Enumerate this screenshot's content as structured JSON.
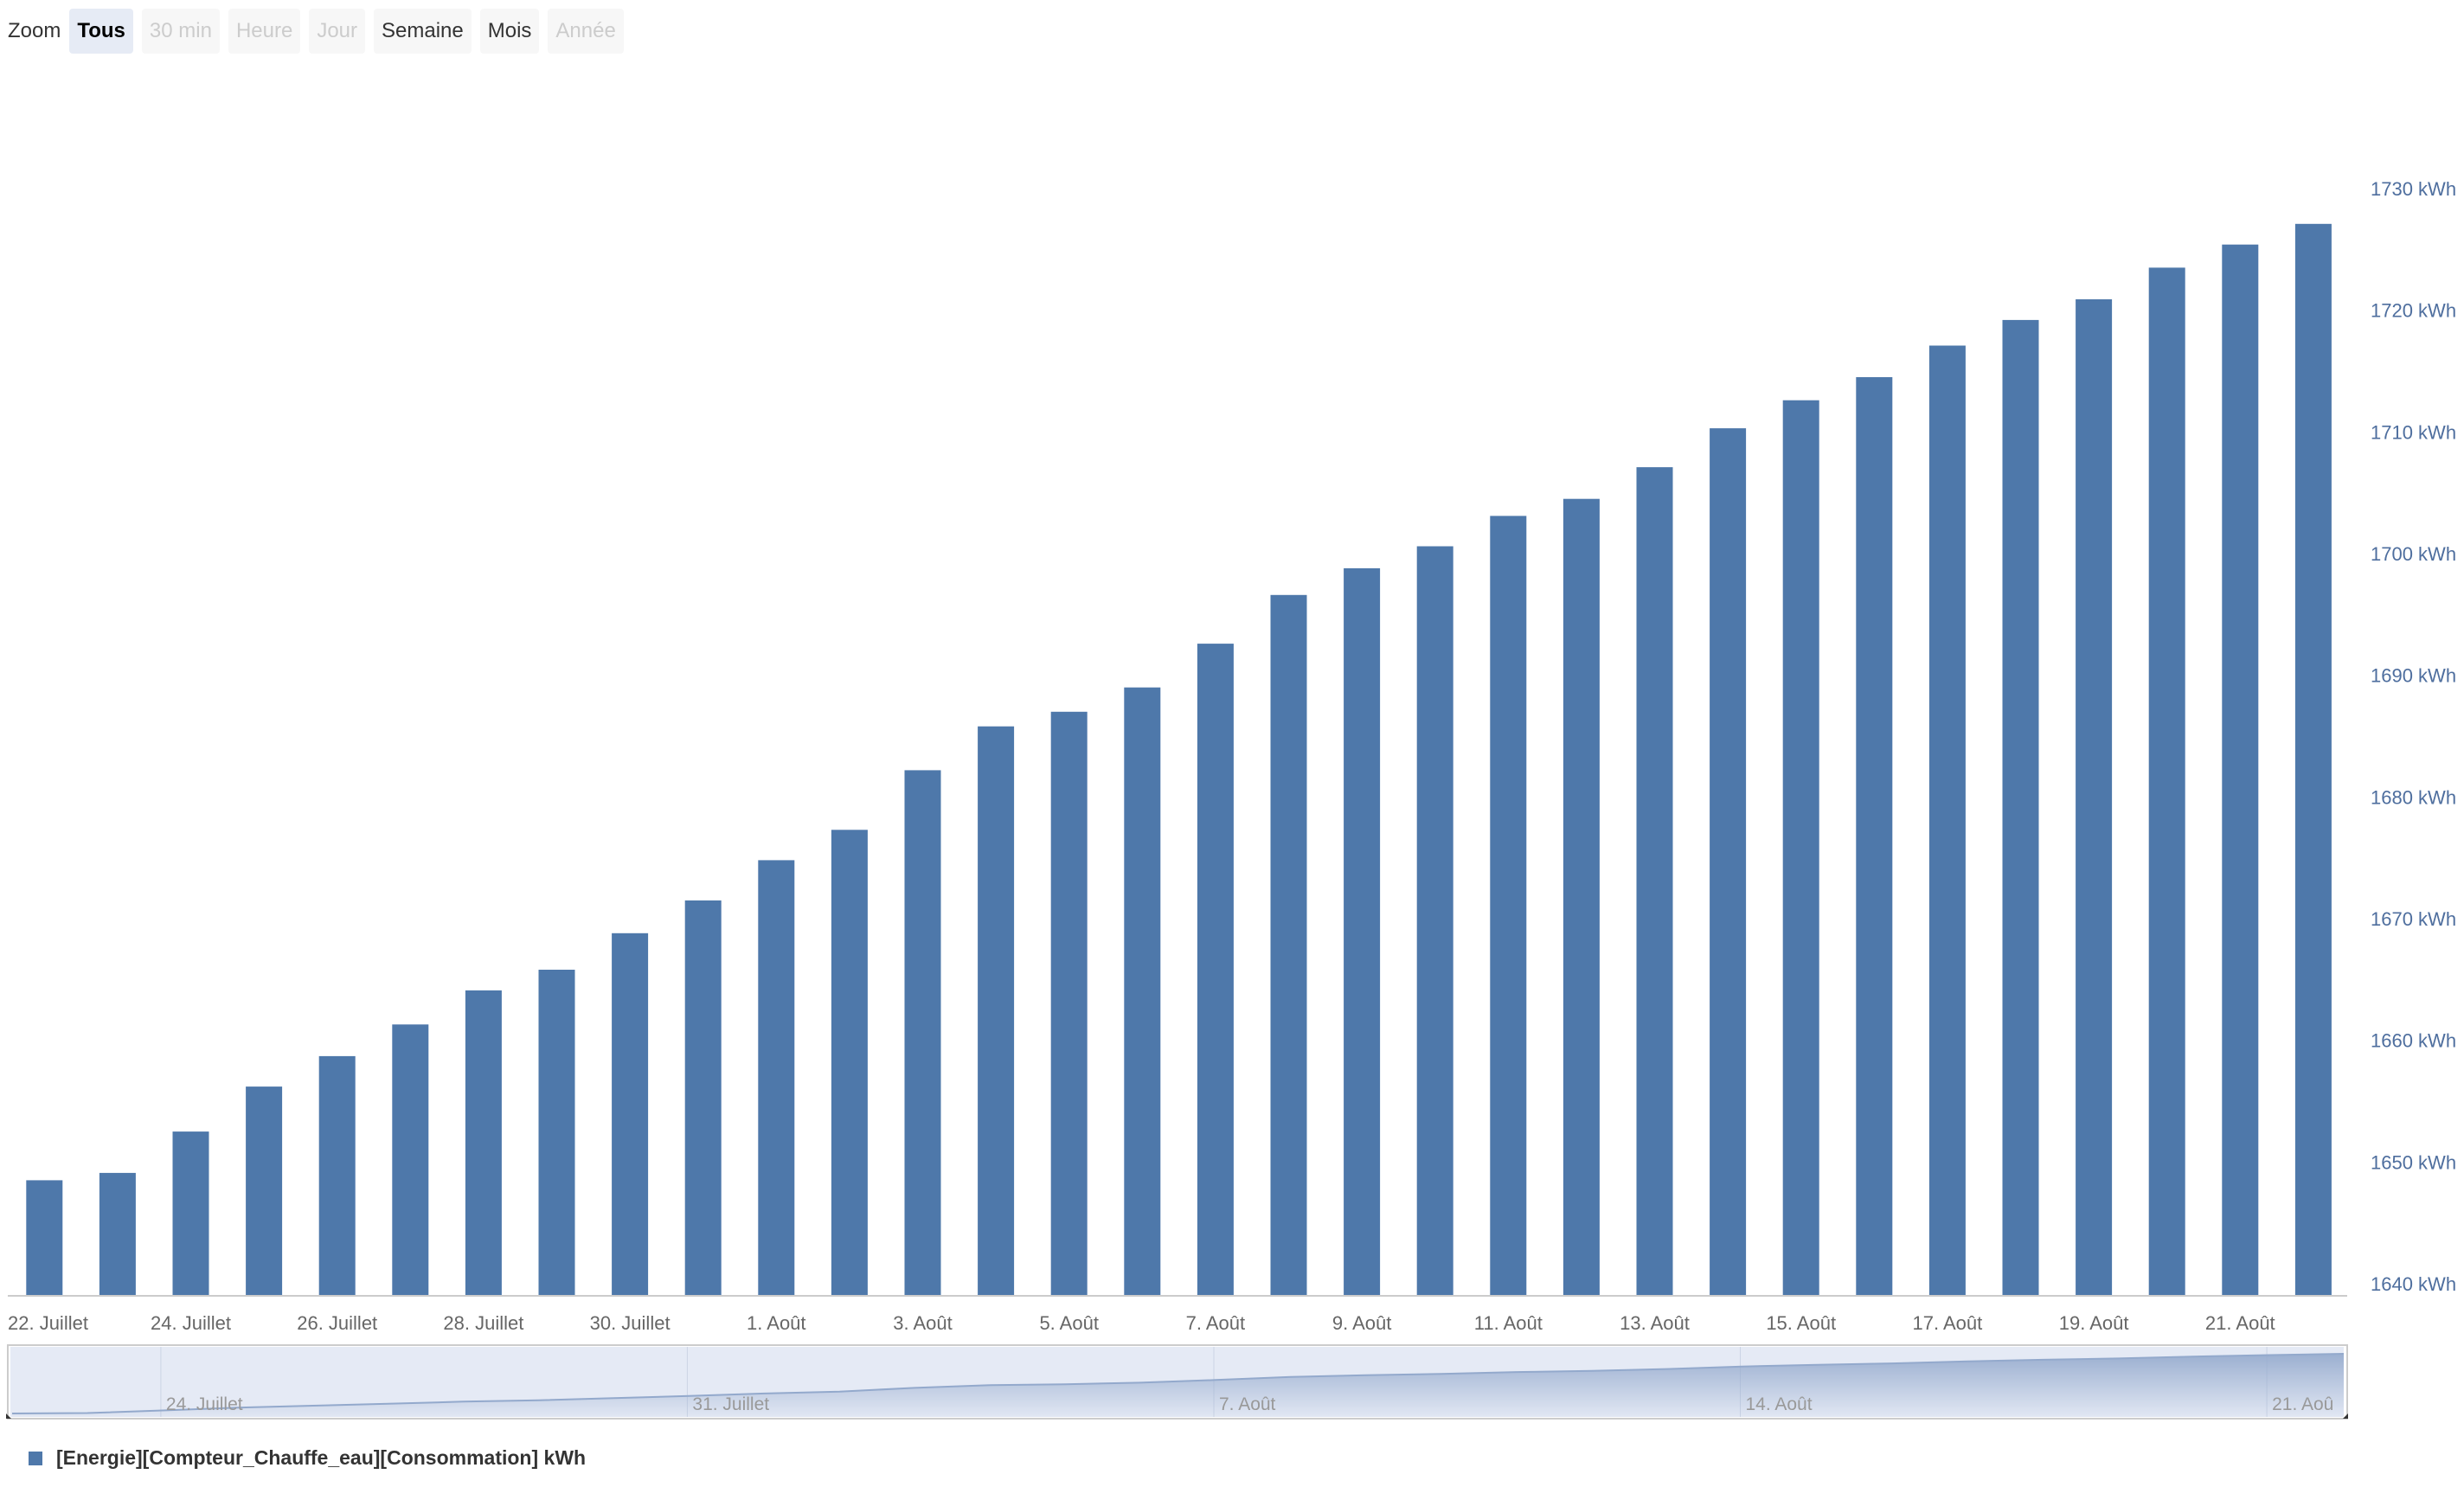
{
  "zoom": {
    "label": "Zoom",
    "buttons": [
      {
        "label": "Tous",
        "state": "active"
      },
      {
        "label": "30 min",
        "state": "disabled"
      },
      {
        "label": "Heure",
        "state": "disabled"
      },
      {
        "label": "Jour",
        "state": "disabled"
      },
      {
        "label": "Semaine",
        "state": "normal"
      },
      {
        "label": "Mois",
        "state": "normal"
      },
      {
        "label": "Année",
        "state": "disabled"
      }
    ]
  },
  "colors": {
    "bar": "#4e78aa",
    "axis_label": "#666666",
    "yaxis_label": "#4e6e9e",
    "navigator_mask": "#d0d9ec",
    "navigator_line": "#4a6fa5"
  },
  "legend": {
    "label": "[Energie][Compteur_Chauffe_eau][Consommation] kWh"
  },
  "chart_data": {
    "type": "bar",
    "categories": [
      "22. Juillet",
      "23. Juillet",
      "24. Juillet",
      "25. Juillet",
      "26. Juillet",
      "27. Juillet",
      "28. Juillet",
      "29. Juillet",
      "30. Juillet",
      "31. Juillet",
      "1. Août",
      "2. Août",
      "3. Août",
      "4. Août",
      "5. Août",
      "6. Août",
      "7. Août",
      "8. Août",
      "9. Août",
      "10. Août",
      "11. Août",
      "12. Août",
      "13. Août",
      "14. Août",
      "15. Août",
      "16. Août",
      "17. Août",
      "18. Août",
      "19. Août",
      "20. Août",
      "21. Août",
      "22. Août"
    ],
    "series": [
      {
        "name": "[Energie][Compteur_Chauffe_eau][Consommation] kWh",
        "values": [
          1648.5,
          1649.1,
          1652.5,
          1656.2,
          1658.7,
          1661.3,
          1664.1,
          1665.8,
          1668.8,
          1671.5,
          1674.8,
          1677.3,
          1682.2,
          1685.8,
          1687.0,
          1689.0,
          1692.6,
          1696.6,
          1698.8,
          1700.6,
          1703.1,
          1704.5,
          1707.1,
          1710.3,
          1712.6,
          1714.5,
          1717.1,
          1719.2,
          1720.9,
          1723.5,
          1725.4,
          1727.1
        ]
      }
    ],
    "x_tick_labels": [
      "22. Juillet",
      "24. Juillet",
      "26. Juillet",
      "28. Juillet",
      "30. Juillet",
      "1. Août",
      "3. Août",
      "5. Août",
      "7. Août",
      "9. Août",
      "11. Août",
      "13. Août",
      "15. Août",
      "17. Août",
      "19. Août",
      "21. Août"
    ],
    "y_ticks": [
      1640,
      1650,
      1660,
      1670,
      1680,
      1690,
      1700,
      1710,
      1720,
      1730
    ],
    "y_tick_suffix": " kWh",
    "ylim": [
      1639,
      1730
    ],
    "yaxis_side": "right",
    "grid": false,
    "legend_position": "bottom-left",
    "navigator": {
      "tick_labels": [
        "24. Juillet",
        "31. Juillet",
        "7. Août",
        "14. Août",
        "21. Aoû"
      ]
    }
  }
}
